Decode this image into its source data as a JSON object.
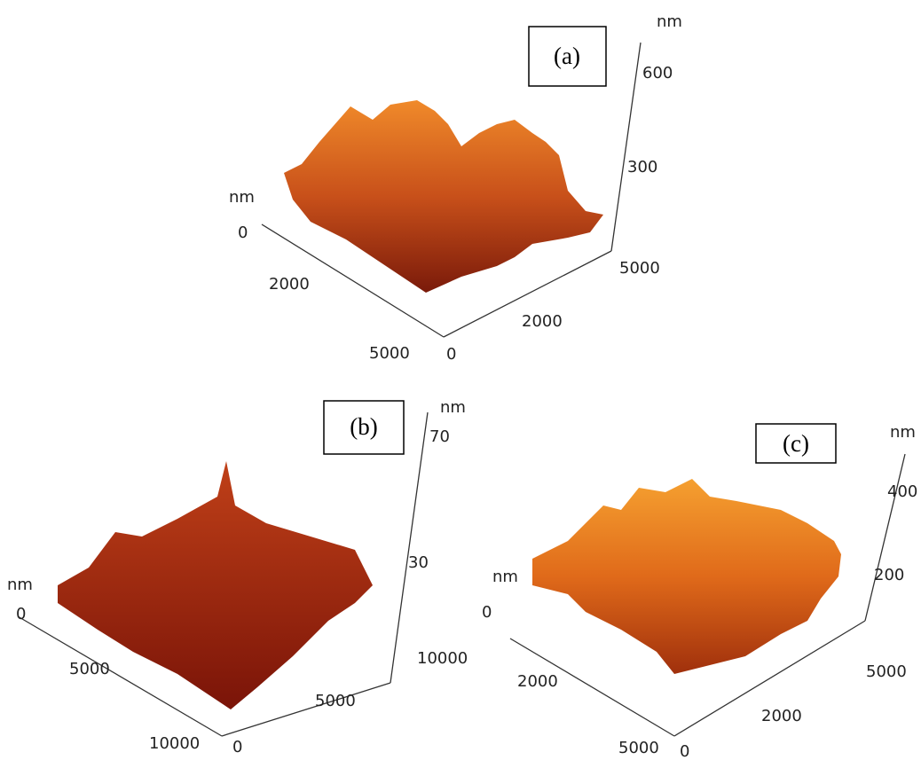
{
  "panels": [
    {
      "label": "(a)",
      "z_axis": {
        "unit": "nm",
        "ticks": [
          300,
          600
        ]
      },
      "left_axis": {
        "unit": "nm",
        "ticks": [
          0,
          2000,
          5000
        ]
      },
      "right_axis": {
        "ticks": [
          0,
          2000,
          5000
        ]
      }
    },
    {
      "label": "(b)",
      "z_axis": {
        "unit": "nm",
        "ticks": [
          30,
          70
        ]
      },
      "left_axis": {
        "unit": "nm",
        "ticks": [
          0,
          5000,
          10000
        ]
      },
      "right_axis": {
        "ticks": [
          0,
          5000,
          10000
        ]
      }
    },
    {
      "label": "(c)",
      "z_axis": {
        "unit": "nm",
        "ticks": [
          200,
          400
        ]
      },
      "left_axis": {
        "unit": "nm",
        "ticks": [
          0,
          2000,
          5000
        ]
      },
      "right_axis": {
        "ticks": [
          0,
          2000,
          5000
        ]
      }
    }
  ]
}
